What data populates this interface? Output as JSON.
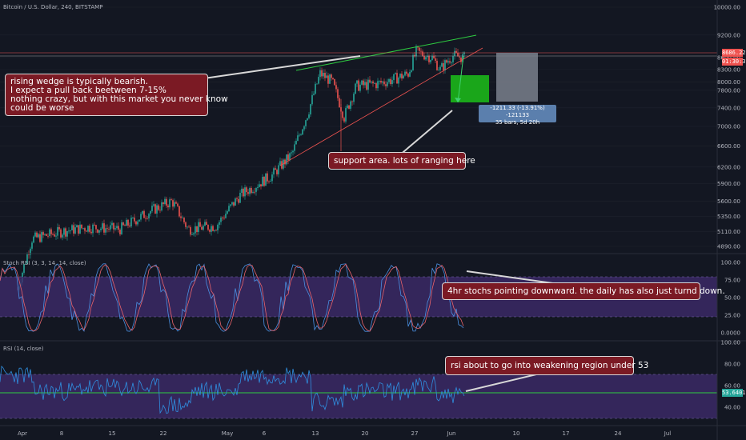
{
  "header": {
    "symbol_title": "Bitcoin / U.S. Dollar, 240, BITSTAMP",
    "stoch_title": "Stoch RSI (3, 3, 14, 14, close)",
    "rsi_title": "RSI (14, close)"
  },
  "colors": {
    "background": "#131722",
    "up": "#26a69a",
    "down": "#ef5350",
    "band": "#3d2a6a",
    "wedge_upper": "#2ecc40",
    "wedge_lower": "#ef5350",
    "note_bg": "#7b1a24"
  },
  "price_axis": [
    "10000.00",
    "9200.00",
    "8300.00",
    "7400.00",
    "7000.00",
    "6600.00",
    "6200.00",
    "5900.00",
    "5600.00",
    "5350.00",
    "5110.00",
    "4890.00",
    "8600.00",
    "8000.00",
    "7800.00"
  ],
  "price_ticks": [
    {
      "label": "10000.00",
      "value": 10000
    },
    {
      "label": "9200.00",
      "value": 9200
    },
    {
      "label": "8600.00",
      "value": 8600
    },
    {
      "label": "8300.00",
      "value": 8300
    },
    {
      "label": "8000.00",
      "value": 8000
    },
    {
      "label": "7800.00",
      "value": 7800
    },
    {
      "label": "7400.00",
      "value": 7400
    },
    {
      "label": "7000.00",
      "value": 7000
    },
    {
      "label": "6600.00",
      "value": 6600
    },
    {
      "label": "6200.00",
      "value": 6200
    },
    {
      "label": "5900.00",
      "value": 5900
    },
    {
      "label": "5600.00",
      "value": 5600
    },
    {
      "label": "5350.00",
      "value": 5350
    },
    {
      "label": "5110.00",
      "value": 5110
    },
    {
      "label": "4890.00",
      "value": 4890
    }
  ],
  "price_labels": {
    "last_price": "8686.22",
    "countdown": "01:30:37",
    "rsi_value": "53.6401"
  },
  "stoch_ticks": [
    "100.00",
    "75.00",
    "50.00",
    "25.00",
    "0.0000"
  ],
  "rsi_ticks": [
    "100.00",
    "80.00",
    "60.00",
    "40.00"
  ],
  "x_ticks": [
    "Apr",
    "8",
    "15",
    "22",
    "May",
    "6",
    "13",
    "20",
    "27",
    "Jun",
    "10",
    "17",
    "24",
    "Jul"
  ],
  "annotations": {
    "wedge_note": "rising wedge is typically bearish.\nI expect a pull back beetween 7-15%\nnothing crazy, but with this market you never know\ncould be worse",
    "support_note": "support area. lots of ranging here",
    "stoch_note": "4hr stochs pointing downward. the daily has also just turnd down.",
    "rsi_note": "rsi about to go into weakening region under 53",
    "measure_line1": "-1211.33 (-13.91%) -121133",
    "measure_line2": "35 bars, 5d 20h"
  },
  "chart_data": [
    {
      "type": "candlestick",
      "title": "Bitcoin / U.S. Dollar, 240, BITSTAMP",
      "x": [
        "Apr 1",
        "Apr 8",
        "Apr 15",
        "Apr 22",
        "May 1",
        "May 6",
        "May 13",
        "May 20",
        "May 27",
        "Jun 1"
      ],
      "close": [
        4100,
        5200,
        5150,
        5450,
        5350,
        5750,
        7900,
        7950,
        8700,
        8650
      ],
      "ylim": [
        4700,
        10200
      ],
      "log_scale": true
    },
    {
      "type": "line",
      "title": "Stoch RSI (3, 3, 14, 14, close)",
      "bands": [
        20,
        80
      ],
      "ylim": [
        0,
        100
      ]
    },
    {
      "type": "line",
      "title": "RSI (14, close)",
      "bands": [
        30,
        70
      ],
      "reference_level": 53,
      "last_value": 53.6401,
      "ylim": [
        20,
        100
      ]
    }
  ]
}
